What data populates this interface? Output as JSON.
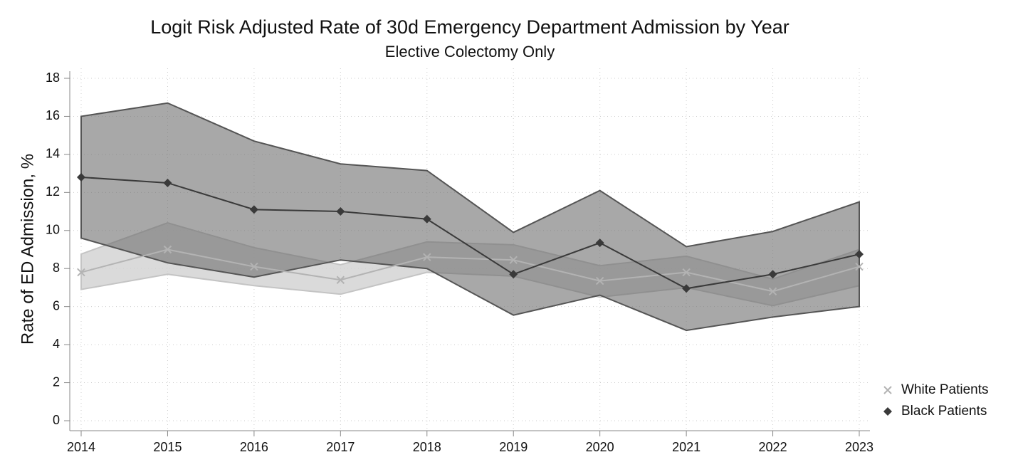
{
  "chart_data": {
    "type": "line",
    "title": "Logit Risk Adjusted Rate of 30d Emergency Department Admission by Year",
    "subtitle": "Elective Colectomy Only",
    "y_label": "Rate of ED Admission, %",
    "x": [
      2014,
      2015,
      2016,
      2017,
      2018,
      2019,
      2020,
      2021,
      2022,
      2023
    ],
    "xlim": [
      2014,
      2023
    ],
    "xticks": [
      2014,
      2015,
      2016,
      2017,
      2018,
      2019,
      2020,
      2021,
      2022,
      2023
    ],
    "ylim": [
      0,
      18
    ],
    "yticks": [
      0,
      2,
      4,
      6,
      8,
      10,
      12,
      14,
      16,
      18
    ],
    "grid": true,
    "legend": "right",
    "series": [
      {
        "name": "White Patients",
        "color": "#b3b3b3",
        "band_color": "#d4d4d4",
        "marker": "x",
        "values": [
          7.8,
          9.0,
          8.1,
          7.4,
          8.6,
          8.45,
          7.35,
          7.8,
          6.8,
          8.1
        ],
        "lower": [
          6.9,
          7.7,
          7.1,
          6.65,
          7.8,
          7.6,
          6.5,
          7.0,
          6.05,
          7.1
        ],
        "upper": [
          8.76,
          10.4,
          9.1,
          8.2,
          9.4,
          9.25,
          8.15,
          8.65,
          7.45,
          9.0
        ]
      },
      {
        "name": "Black Patients",
        "color": "#3a3a3a",
        "band_color": "#6e6e6e",
        "marker": "diamond",
        "values": [
          12.8,
          12.5,
          11.1,
          11.0,
          10.6,
          7.7,
          9.35,
          6.95,
          7.7,
          8.75
        ],
        "lower": [
          9.6,
          8.3,
          7.55,
          8.45,
          8.0,
          5.55,
          6.6,
          4.75,
          5.45,
          6.0
        ],
        "upper": [
          16.0,
          16.7,
          14.7,
          13.5,
          13.15,
          9.9,
          12.1,
          9.15,
          9.95,
          11.5
        ]
      }
    ]
  }
}
